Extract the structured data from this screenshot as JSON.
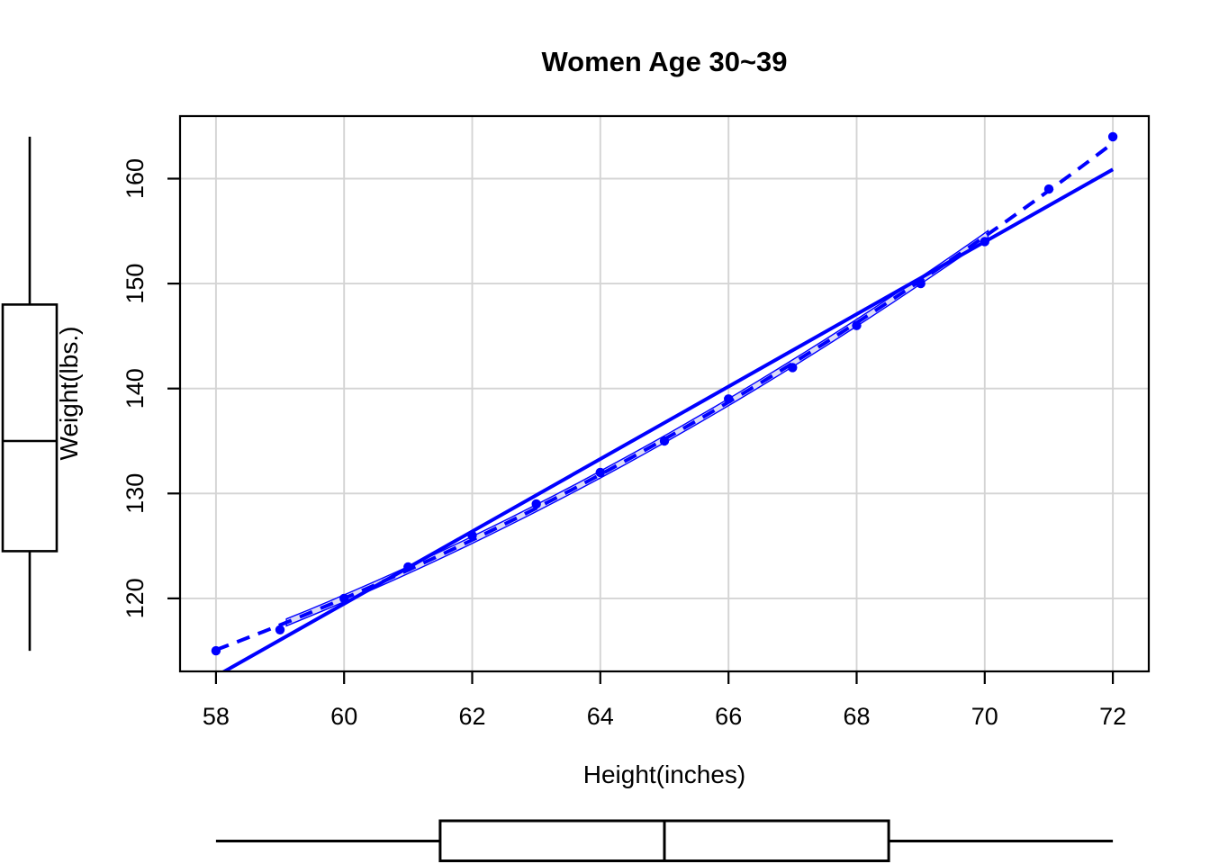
{
  "chart_data": {
    "type": "scatter",
    "title": "Women Age 30~39",
    "xlabel": "Height(inches)",
    "ylabel": "Weight(lbs.)",
    "x": [
      58,
      59,
      60,
      61,
      62,
      63,
      64,
      65,
      66,
      67,
      68,
      69,
      70,
      71,
      72
    ],
    "y": [
      115,
      117,
      120,
      123,
      126,
      129,
      132,
      135,
      139,
      142,
      146,
      150,
      154,
      159,
      164
    ],
    "xlim": [
      58,
      72
    ],
    "ylim": [
      115,
      164
    ],
    "x_ticks": [
      58,
      60,
      62,
      64,
      66,
      68,
      70,
      72
    ],
    "y_ticks": [
      120,
      130,
      140,
      150,
      160
    ],
    "grid": true,
    "legend": null,
    "series": [
      {
        "name": "observations",
        "kind": "points",
        "color": "#0000ff",
        "marker": "filled-circle"
      },
      {
        "name": "linear-fit",
        "kind": "line",
        "style": "solid",
        "color": "#0000ff",
        "coef": {
          "intercept": -87.5167,
          "slope": 3.45
        },
        "x_range": [
          58,
          72
        ]
      },
      {
        "name": "quadratic-fit",
        "kind": "line",
        "style": "dashed",
        "color": "#0000ff",
        "coef": {
          "intercept": 261.878,
          "linear": -7.3483,
          "quadratic": 0.08306
        },
        "x_range": [
          58,
          72
        ]
      },
      {
        "name": "confidence-band",
        "kind": "band",
        "color": "#0000ff",
        "fill": "#dcdcf6",
        "follows": "quadratic-fit",
        "half_width": 0.33,
        "x_range": [
          59.1,
          70.05
        ]
      }
    ],
    "marginal_boxplots": {
      "weight": {
        "position": "left",
        "orientation": "vertical",
        "min": 115,
        "q1": 124.5,
        "median": 135,
        "q3": 148,
        "max": 164
      },
      "height": {
        "position": "bottom",
        "orientation": "horizontal",
        "min": 58,
        "q1": 61.5,
        "median": 65,
        "q3": 68.5,
        "max": 72
      }
    },
    "colors": {
      "series": "#0000ff",
      "grid": "#d4d4d4",
      "axis": "#000000",
      "background": "#ffffff",
      "band_fill": "#dcdcf6"
    }
  }
}
